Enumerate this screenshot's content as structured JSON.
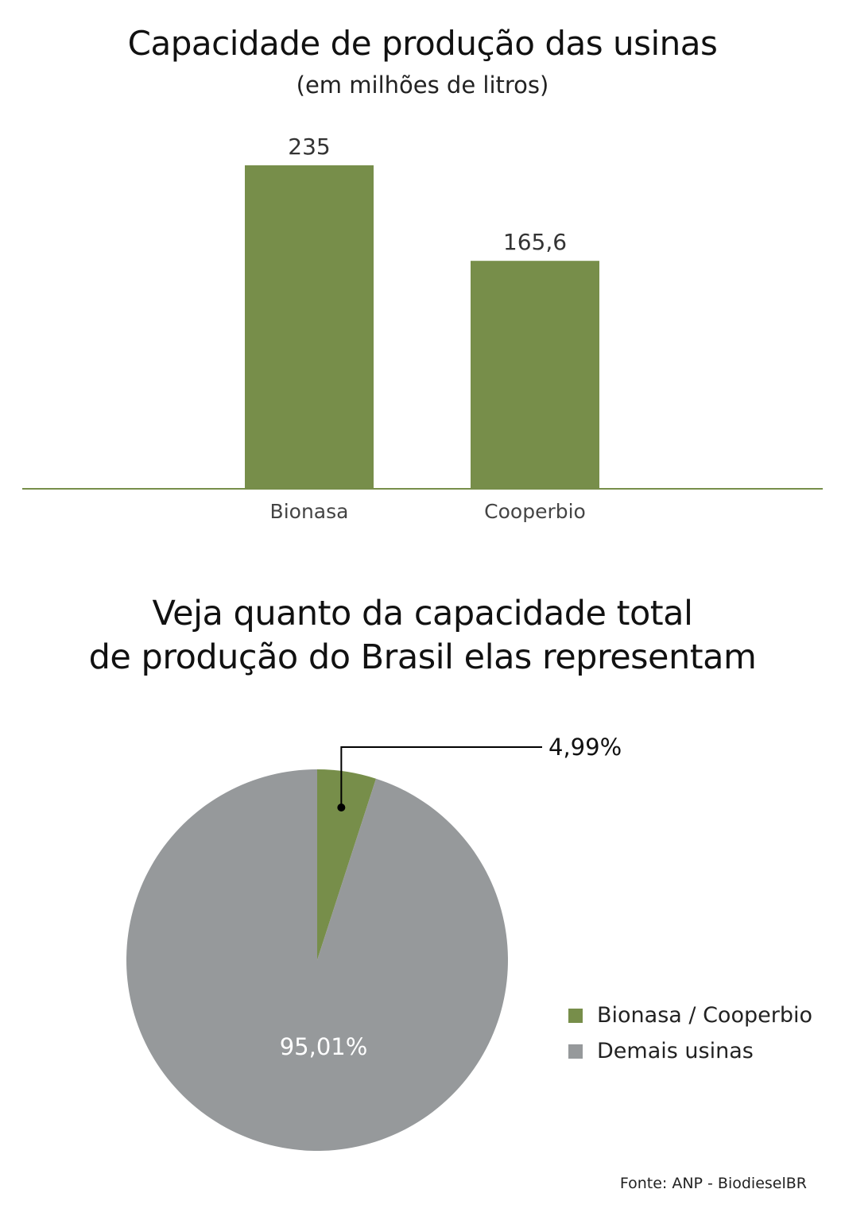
{
  "chart_data": [
    {
      "type": "bar",
      "title": "Capacidade de produção das usinas",
      "subtitle": "(em milhões de litros)",
      "categories": [
        "Bionasa",
        "Cooperbio"
      ],
      "values": [
        235,
        165.6
      ],
      "value_labels": [
        "235",
        "165,6"
      ],
      "ylim": [
        0,
        235
      ],
      "grid": false,
      "bar_color": "#778e4a",
      "axis_color": "#778e4a"
    },
    {
      "type": "pie",
      "title_lines": [
        "Veja quanto da capacidade total",
        "de produção do Brasil elas representam"
      ],
      "slices": [
        {
          "label": "Bionasa / Cooperbio",
          "value": 4.99,
          "value_label": "4,99%",
          "color": "#778e4a"
        },
        {
          "label": "Demais usinas",
          "value": 95.01,
          "value_label": "95,01%",
          "color": "#96999b"
        }
      ],
      "legend_position": "right"
    }
  ],
  "source": "Fonte: ANP - BiodieselBR"
}
